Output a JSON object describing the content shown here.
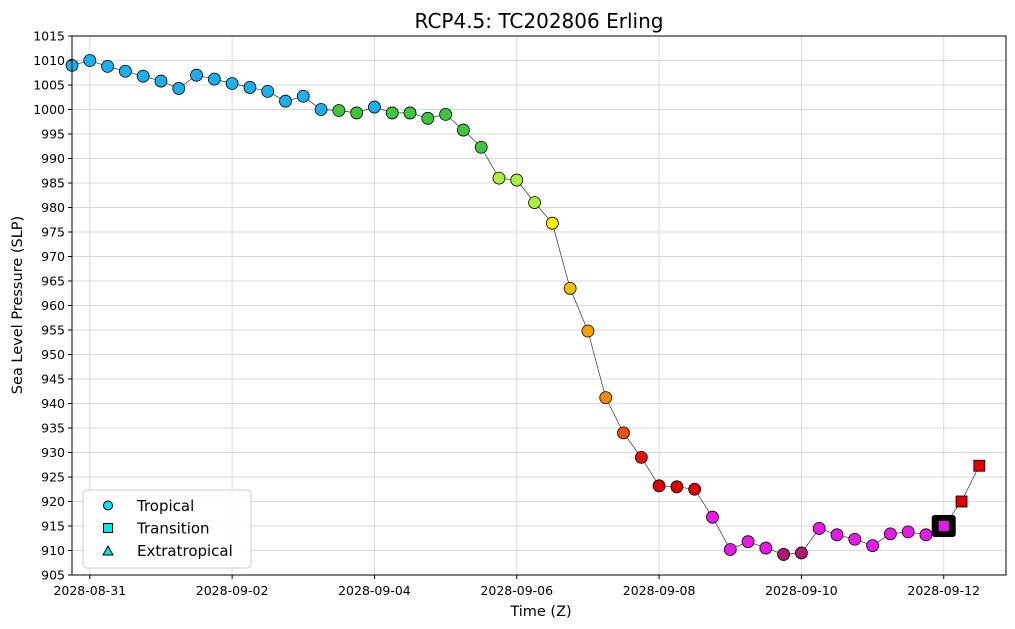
{
  "chart_data": {
    "type": "scatter",
    "title": "RCP4.5: TC202806 Erling",
    "xlabel": "Time (Z)",
    "ylabel": "Sea Level Pressure (SLP)",
    "ylim": [
      905,
      1015
    ],
    "yticks": [
      905,
      910,
      915,
      920,
      925,
      930,
      935,
      940,
      945,
      950,
      955,
      960,
      965,
      970,
      975,
      980,
      985,
      990,
      995,
      1000,
      1005,
      1010,
      1015
    ],
    "xlim": [
      "2028-08-30T18:00",
      "2028-09-12T21:00"
    ],
    "xticks": [
      "2028-08-31",
      "2028-09-02",
      "2028-09-04",
      "2028-09-06",
      "2028-09-08",
      "2028-09-10",
      "2028-09-12"
    ],
    "grid": true,
    "legend_position": "bottom-left",
    "legend": [
      {
        "label": "Tropical",
        "marker": "circle"
      },
      {
        "label": "Transition",
        "marker": "square"
      },
      {
        "label": "Extratropical",
        "marker": "triangle"
      }
    ],
    "points": [
      {
        "t": "2028-08-30T18:00",
        "slp": 1009,
        "phase": "tropical",
        "color": "#1ab0f0"
      },
      {
        "t": "2028-08-31T00:00",
        "slp": 1010,
        "phase": "tropical",
        "color": "#1ab0f0"
      },
      {
        "t": "2028-08-31T06:00",
        "slp": 1008.8,
        "phase": "tropical",
        "color": "#1ab0f0"
      },
      {
        "t": "2028-08-31T12:00",
        "slp": 1007.8,
        "phase": "tropical",
        "color": "#1ab0f0"
      },
      {
        "t": "2028-08-31T18:00",
        "slp": 1006.8,
        "phase": "tropical",
        "color": "#1ab0f0"
      },
      {
        "t": "2028-09-01T00:00",
        "slp": 1005.8,
        "phase": "tropical",
        "color": "#1ab0f0"
      },
      {
        "t": "2028-09-01T06:00",
        "slp": 1004.3,
        "phase": "tropical",
        "color": "#1ab0f0"
      },
      {
        "t": "2028-09-01T12:00",
        "slp": 1007,
        "phase": "tropical",
        "color": "#1ab0f0"
      },
      {
        "t": "2028-09-01T18:00",
        "slp": 1006.2,
        "phase": "tropical",
        "color": "#1ab0f0"
      },
      {
        "t": "2028-09-02T00:00",
        "slp": 1005.3,
        "phase": "tropical",
        "color": "#1ab0f0"
      },
      {
        "t": "2028-09-02T06:00",
        "slp": 1004.5,
        "phase": "tropical",
        "color": "#1ab0f0"
      },
      {
        "t": "2028-09-02T12:00",
        "slp": 1003.7,
        "phase": "tropical",
        "color": "#1ab0f0"
      },
      {
        "t": "2028-09-02T18:00",
        "slp": 1001.7,
        "phase": "tropical",
        "color": "#1ab0f0"
      },
      {
        "t": "2028-09-03T00:00",
        "slp": 1002.7,
        "phase": "tropical",
        "color": "#1ab0f0"
      },
      {
        "t": "2028-09-03T06:00",
        "slp": 1000,
        "phase": "tropical",
        "color": "#1ab0f0"
      },
      {
        "t": "2028-09-03T12:00",
        "slp": 999.8,
        "phase": "tropical",
        "color": "#3cc83c"
      },
      {
        "t": "2028-09-03T18:00",
        "slp": 999.3,
        "phase": "tropical",
        "color": "#3cc83c"
      },
      {
        "t": "2028-09-04T00:00",
        "slp": 1000.5,
        "phase": "tropical",
        "color": "#1ab0f0"
      },
      {
        "t": "2028-09-04T06:00",
        "slp": 999.3,
        "phase": "tropical",
        "color": "#3cc83c"
      },
      {
        "t": "2028-09-04T12:00",
        "slp": 999.3,
        "phase": "tropical",
        "color": "#3cc83c"
      },
      {
        "t": "2028-09-04T18:00",
        "slp": 998.2,
        "phase": "tropical",
        "color": "#3cc83c"
      },
      {
        "t": "2028-09-05T00:00",
        "slp": 999,
        "phase": "tropical",
        "color": "#3cc83c"
      },
      {
        "t": "2028-09-05T06:00",
        "slp": 995.8,
        "phase": "tropical",
        "color": "#3cc83c"
      },
      {
        "t": "2028-09-05T12:00",
        "slp": 992.3,
        "phase": "tropical",
        "color": "#3cc83c"
      },
      {
        "t": "2028-09-05T18:00",
        "slp": 986,
        "phase": "tropical",
        "color": "#a8f03c"
      },
      {
        "t": "2028-09-06T00:00",
        "slp": 985.6,
        "phase": "tropical",
        "color": "#a8f03c"
      },
      {
        "t": "2028-09-06T06:00",
        "slp": 981,
        "phase": "tropical",
        "color": "#a8f03c"
      },
      {
        "t": "2028-09-06T12:00",
        "slp": 976.8,
        "phase": "tropical",
        "color": "#f8f000"
      },
      {
        "t": "2028-09-06T18:00",
        "slp": 963.5,
        "phase": "tropical",
        "color": "#f8c000"
      },
      {
        "t": "2028-09-07T00:00",
        "slp": 954.8,
        "phase": "tropical",
        "color": "#f8a000"
      },
      {
        "t": "2028-09-07T06:00",
        "slp": 941.2,
        "phase": "tropical",
        "color": "#f88800"
      },
      {
        "t": "2028-09-07T12:00",
        "slp": 934,
        "phase": "tropical",
        "color": "#f05000"
      },
      {
        "t": "2028-09-07T18:00",
        "slp": 929,
        "phase": "tropical",
        "color": "#e81010"
      },
      {
        "t": "2028-09-08T00:00",
        "slp": 923.2,
        "phase": "tropical",
        "color": "#e00000"
      },
      {
        "t": "2028-09-08T06:00",
        "slp": 923,
        "phase": "tropical",
        "color": "#e00000"
      },
      {
        "t": "2028-09-08T12:00",
        "slp": 922.5,
        "phase": "tropical",
        "color": "#e00000"
      },
      {
        "t": "2028-09-08T18:00",
        "slp": 916.8,
        "phase": "tropical",
        "color": "#e818e8"
      },
      {
        "t": "2028-09-09T00:00",
        "slp": 910.2,
        "phase": "tropical",
        "color": "#e818e8"
      },
      {
        "t": "2028-09-09T06:00",
        "slp": 911.8,
        "phase": "tropical",
        "color": "#e818e8"
      },
      {
        "t": "2028-09-09T12:00",
        "slp": 910.5,
        "phase": "tropical",
        "color": "#e818e8"
      },
      {
        "t": "2028-09-09T18:00",
        "slp": 909.2,
        "phase": "tropical",
        "color": "#b01870"
      },
      {
        "t": "2028-09-10T00:00",
        "slp": 909.5,
        "phase": "tropical",
        "color": "#b01870"
      },
      {
        "t": "2028-09-10T06:00",
        "slp": 914.5,
        "phase": "tropical",
        "color": "#e818e8"
      },
      {
        "t": "2028-09-10T12:00",
        "slp": 913.2,
        "phase": "tropical",
        "color": "#e818e8"
      },
      {
        "t": "2028-09-10T18:00",
        "slp": 912.3,
        "phase": "tropical",
        "color": "#e818e8"
      },
      {
        "t": "2028-09-11T00:00",
        "slp": 911,
        "phase": "tropical",
        "color": "#e818e8"
      },
      {
        "t": "2028-09-11T06:00",
        "slp": 913.4,
        "phase": "tropical",
        "color": "#e818e8"
      },
      {
        "t": "2028-09-11T12:00",
        "slp": 913.8,
        "phase": "tropical",
        "color": "#e818e8"
      },
      {
        "t": "2028-09-11T18:00",
        "slp": 913.2,
        "phase": "tropical",
        "color": "#e818e8"
      },
      {
        "t": "2028-09-12T00:00",
        "slp": 915,
        "phase": "transition",
        "color": "#e818e8",
        "highlight": true
      },
      {
        "t": "2028-09-12T06:00",
        "slp": 920,
        "phase": "transition",
        "color": "#e00000"
      },
      {
        "t": "2028-09-12T12:00",
        "slp": 927.3,
        "phase": "transition",
        "color": "#e00000"
      }
    ]
  }
}
